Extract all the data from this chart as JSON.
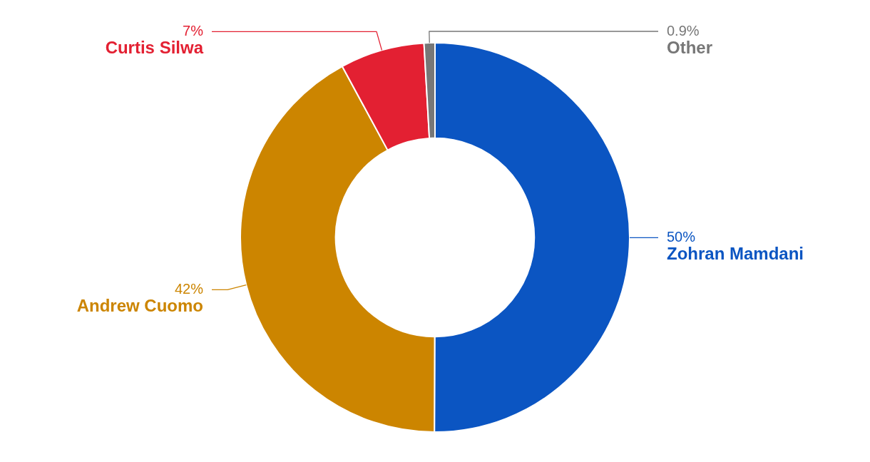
{
  "chart_data": {
    "type": "donut",
    "categories": [
      "Zohran Mamdani",
      "Andrew Cuomo",
      "Curtis Silwa",
      "Other"
    ],
    "values": [
      50,
      42,
      7,
      0.9
    ],
    "value_labels": [
      "50%",
      "42%",
      "7%",
      "0.9%"
    ],
    "colors": [
      "#0b55c2",
      "#cc8500",
      "#e32032",
      "#777777"
    ],
    "legend": false
  }
}
